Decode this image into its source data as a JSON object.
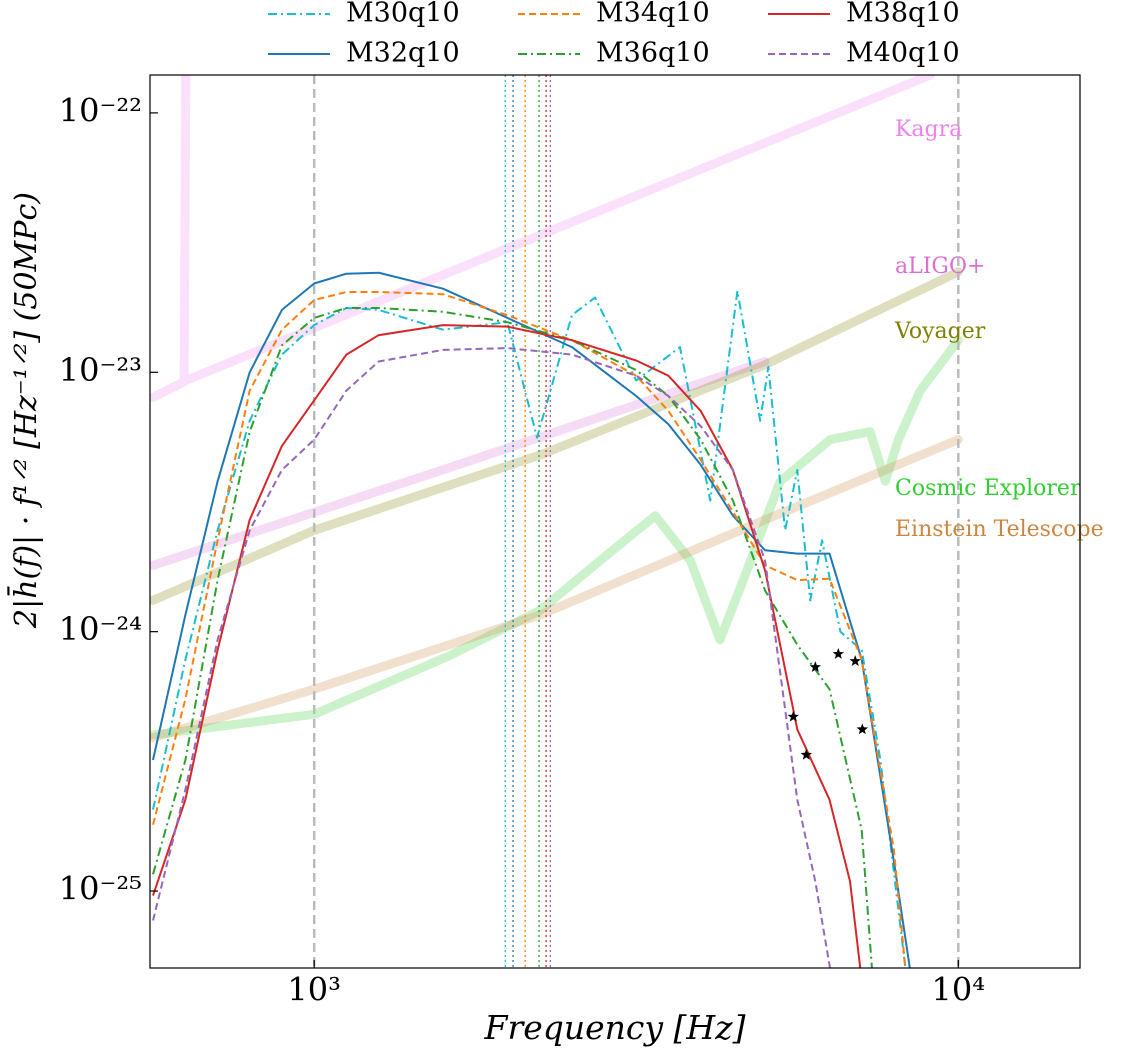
{
  "chart_data": {
    "type": "line",
    "xlabel": "Frequency [Hz]",
    "ylabel": "2|h̄(f)| · f¹ᐟ² [Hz⁻¹ᐟ²] (50MPc)",
    "xscale": "log",
    "yscale": "log",
    "xlim": [
      556,
      15450
    ],
    "ylim": [
      5.05e-26,
      1.4e-22
    ],
    "xticks": [
      {
        "value": 1000,
        "label": "10³"
      },
      {
        "value": 10000,
        "label": "10⁴"
      }
    ],
    "yticks": [
      {
        "value": 1e-22,
        "label": "10⁻²²"
      },
      {
        "value": 1e-23,
        "label": "10⁻²³"
      },
      {
        "value": 1e-24,
        "label": "10⁻²⁴"
      },
      {
        "value": 1e-25,
        "label": "10⁻²⁵"
      }
    ],
    "legend": "upper center",
    "reference_lines": [
      1000,
      10000
    ],
    "series": [
      {
        "name": "M30q10",
        "color": "#17becf",
        "style": "dashdot",
        "vline": 1980,
        "x": [
          562,
          631,
          708,
          794,
          891,
          1000,
          1122,
          1259,
          1585,
          1995,
          2218,
          2512,
          2729,
          3162,
          3698,
          4121,
          4540,
          4926,
          5070,
          5383,
          5623,
          5889,
          6146,
          6561,
          7079,
          7568,
          8279
        ],
        "values": [
          2.06e-25,
          7.8e-25,
          2.46e-24,
          6.5e-24,
          1.17e-23,
          1.52e-23,
          1.77e-23,
          1.74e-23,
          1.46e-23,
          1.56e-23,
          5.6e-24,
          1.66e-23,
          1.94e-23,
          9.3e-24,
          1.25e-23,
          3.2e-24,
          2.06e-23,
          6.5e-24,
          1.05e-23,
          2.46e-24,
          4.2e-24,
          1.32e-24,
          2.25e-24,
          1e-24,
          8.5e-25,
          3.2e-25,
          5e-26
        ]
      },
      {
        "name": "M32q10",
        "color": "#1f77b4",
        "style": "solid",
        "vline": 2036,
        "x": [
          562,
          631,
          708,
          794,
          891,
          1000,
          1122,
          1259,
          1585,
          1995,
          2512,
          3162,
          3548,
          3981,
          4467,
          5012,
          5623,
          6310,
          7079,
          7943,
          8414
        ],
        "values": [
          3.2e-25,
          1.16e-24,
          3.8e-24,
          1e-23,
          1.74e-23,
          2.2e-23,
          2.4e-23,
          2.42e-23,
          2.1e-23,
          1.62e-23,
          1.25e-23,
          8.1e-24,
          6.3e-24,
          4.4e-24,
          2.8e-24,
          2.06e-24,
          2e-24,
          2e-24,
          7.8e-25,
          1.3e-25,
          5e-26
        ]
      },
      {
        "name": "M34q10",
        "color": "#ff7f0e",
        "style": "dashed",
        "vline": 2126,
        "x": [
          562,
          631,
          708,
          794,
          891,
          1000,
          1122,
          1259,
          1585,
          1995,
          2512,
          3162,
          3548,
          3981,
          4467,
          5012,
          5623,
          6310,
          7079,
          7943,
          8279
        ],
        "values": [
          1.8e-25,
          5.5e-25,
          2.25e-24,
          8.5e-24,
          1.46e-23,
          1.9e-23,
          2.04e-23,
          2.04e-23,
          2e-23,
          1.66e-23,
          1.33e-23,
          9.7e-24,
          7.1e-24,
          4.6e-24,
          2.9e-24,
          1.8e-24,
          1.58e-24,
          1.6e-24,
          7.8e-25,
          1.44e-25,
          5e-26
        ]
      },
      {
        "name": "M36q10",
        "color": "#2ca02c",
        "style": "dashdot",
        "vline": 2234,
        "x": [
          562,
          631,
          708,
          794,
          891,
          1000,
          1122,
          1259,
          1585,
          1995,
          2512,
          3162,
          3548,
          3981,
          4467,
          5012,
          5623,
          6310,
          7079,
          7345
        ],
        "values": [
          1.16e-25,
          3.2e-25,
          1.58e-24,
          5.9e-24,
          1.27e-23,
          1.62e-23,
          1.77e-23,
          1.77e-23,
          1.71e-23,
          1.56e-23,
          1.33e-23,
          1.02e-23,
          8.1e-24,
          5.5e-24,
          3.2e-24,
          1.44e-24,
          8.9e-25,
          6e-25,
          1.72e-25,
          5e-26
        ]
      },
      {
        "name": "M38q10",
        "color": "#d62728",
        "style": "solid",
        "vline": 2291,
        "x": [
          562,
          631,
          708,
          794,
          891,
          1000,
          1122,
          1259,
          1585,
          1995,
          2512,
          3162,
          3548,
          3981,
          4467,
          5012,
          5623,
          6310,
          6790,
          7047
        ],
        "values": [
          9.6e-26,
          2.25e-25,
          8.5e-25,
          2.7e-24,
          5.2e-24,
          7.8e-24,
          1.17e-23,
          1.39e-23,
          1.52e-23,
          1.5e-23,
          1.33e-23,
          1.11e-23,
          9.7e-24,
          7.1e-24,
          4.2e-24,
          1.72e-24,
          4.2e-25,
          2.25e-25,
          1.09e-25,
          5e-26
        ]
      },
      {
        "name": "M40q10",
        "color": "#9467bd",
        "style": "dashed",
        "vline": 2326,
        "x": [
          562,
          631,
          708,
          794,
          891,
          1000,
          1122,
          1259,
          1585,
          1995,
          2512,
          3162,
          3548,
          3981,
          4467,
          5012,
          5623,
          5998,
          6326
        ],
        "values": [
          7.7e-26,
          2.46e-25,
          9.3e-25,
          2.46e-24,
          4.2e-24,
          5.5e-24,
          8.5e-24,
          1.1e-23,
          1.22e-23,
          1.24e-23,
          1.17e-23,
          9.7e-24,
          8.1e-24,
          6.2e-24,
          4.2e-24,
          1.88e-24,
          2.25e-25,
          1.09e-25,
          5e-26
        ]
      }
    ],
    "stars": {
      "color": "#000000",
      "x": [
        5543,
        5998,
        6512,
        6918,
        5808,
        7096
      ],
      "values": [
        4.7e-25,
        7.3e-25,
        8.2e-25,
        7.7e-25,
        3.35e-25,
        4.2e-25
      ]
    },
    "detectors": [
      {
        "name": "Kagra",
        "color": "#ee82ee",
        "x": [
          562,
          628,
          632,
          632,
          632,
          9049
        ],
        "values": [
          8e-24,
          9.2e-24,
          1.4e-22,
          null,
          9.3e-24,
          1.4e-22
        ]
      },
      {
        "name": "aLIGO+",
        "color": "#da70d6",
        "x": [
          562,
          1626,
          5012
        ],
        "values": [
          1.8e-24,
          4.3e-24,
          1.1e-23
        ]
      },
      {
        "name": "Voyager",
        "color": "#808000",
        "x": [
          562,
          1000,
          2244,
          5012,
          10000
        ],
        "values": [
          1.32e-24,
          2.46e-24,
          4.8e-24,
          1.07e-23,
          2.44e-23
        ]
      },
      {
        "name": "Cosmic Explorer",
        "color": "#32cd32",
        "x": [
          562,
          1000,
          1626,
          2244,
          2779,
          3384,
          3838,
          4266,
          4667,
          5291,
          6326,
          7295,
          7702,
          8072,
          8730,
          10000
        ],
        "values": [
          4e-25,
          4.8e-25,
          8.1e-25,
          1.21e-24,
          1.88e-24,
          2.8e-24,
          1.88e-24,
          9.3e-25,
          1.65e-24,
          3.8e-24,
          5.5e-24,
          5.9e-24,
          3.8e-24,
          5.5e-24,
          8.5e-24,
          1.33e-23
        ]
      },
      {
        "name": "Einstein Telescope",
        "color": "#cd853f",
        "x": [
          562,
          1000,
          2244,
          5012,
          10000
        ],
        "values": [
          3.9e-25,
          6e-25,
          1.16e-24,
          2.7e-24,
          5.5e-24
        ]
      }
    ]
  }
}
